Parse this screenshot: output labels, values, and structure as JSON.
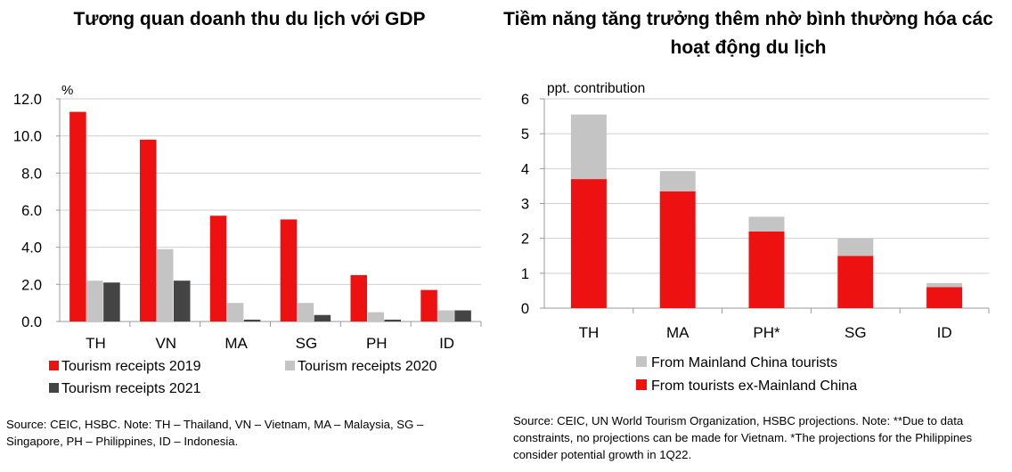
{
  "titles": {
    "left": "Tương quan doanh thu du lịch với GDP",
    "right": "Tiềm năng tăng trưởng thêm nhờ bình thường hóa các hoạt động du lịch"
  },
  "sources": {
    "left": "Source: CEIC, HSBC. Note: TH – Thailand, VN – Vietnam, MA – Malaysia, SG – Singapore, PH – Philippines, ID – Indonesia.",
    "right": "Source: CEIC, UN World Tourism Organization, HSBC projections. Note: **Due to data constraints, no projections can be made for Vietnam. *The projections for the Philippines consider potential growth in 1Q22."
  },
  "colors": {
    "red": "#ee1111",
    "light_gray": "#c4c4c4",
    "dark_gray": "#444444",
    "grid": "#cfcfcf",
    "axis": "#999999"
  },
  "chart_data": [
    {
      "type": "bar",
      "title": "Tương quan doanh thu du lịch với GDP",
      "ylabel": "%",
      "xlabel": "",
      "ylim": [
        0,
        12
      ],
      "yticks": [
        "0.0",
        "2.0",
        "4.0",
        "6.0",
        "8.0",
        "10.0",
        "12.0"
      ],
      "categories": [
        "TH",
        "VN",
        "MA",
        "SG",
        "PH",
        "ID"
      ],
      "grid": true,
      "legend_position": "bottom",
      "series": [
        {
          "name": "Tourism receipts 2019",
          "color": "#ee1111",
          "values": [
            11.3,
            9.8,
            5.7,
            5.5,
            2.5,
            1.7
          ]
        },
        {
          "name": "Tourism receipts 2020",
          "color": "#c4c4c4",
          "values": [
            2.2,
            3.9,
            1.0,
            1.0,
            0.5,
            0.6
          ]
        },
        {
          "name": "Tourism receipts 2021",
          "color": "#444444",
          "values": [
            2.1,
            2.2,
            0.1,
            0.35,
            0.1,
            0.6
          ]
        }
      ]
    },
    {
      "type": "bar",
      "stacked": true,
      "title": "Tiềm năng tăng trưởng thêm nhờ bình thường hóa các hoạt động du lịch",
      "ylabel": "ppt. contribution",
      "xlabel": "",
      "ylim": [
        0,
        6
      ],
      "yticks": [
        "0",
        "1",
        "2",
        "3",
        "4",
        "5",
        "6"
      ],
      "categories": [
        "TH",
        "MA",
        "PH*",
        "SG",
        "ID"
      ],
      "grid": true,
      "legend_position": "bottom",
      "series": [
        {
          "name": "From tourists ex-Mainland China",
          "color": "#ee1111",
          "values": [
            3.7,
            3.35,
            2.2,
            1.5,
            0.6
          ]
        },
        {
          "name": "From Mainland China tourists",
          "color": "#c4c4c4",
          "values": [
            1.85,
            0.58,
            0.42,
            0.5,
            0.12
          ]
        }
      ],
      "legend_order": [
        "From Mainland China tourists",
        "From tourists ex-Mainland China"
      ]
    }
  ]
}
